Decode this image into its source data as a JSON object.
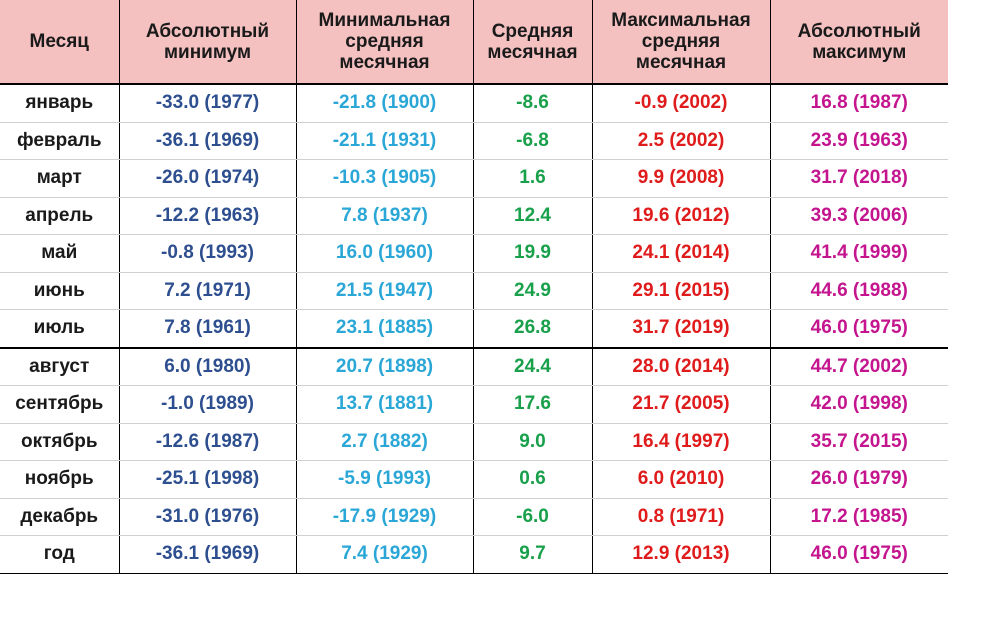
{
  "table": {
    "headers": [
      "Месяц",
      "Абсолютный минимум",
      "Минимальная средняя месячная",
      "Средняя месячная",
      "Максимальная средняя месячная",
      "Абсолютный максимум"
    ],
    "rows": [
      {
        "month": "январь",
        "abs_min": "-33.0 (1977)",
        "mean_min": "-21.8 (1900)",
        "mean": "-8.6",
        "mean_max": "-0.9 (2002)",
        "abs_max": "16.8 (1987)"
      },
      {
        "month": "февраль",
        "abs_min": "-36.1 (1969)",
        "mean_min": "-21.1 (1931)",
        "mean": "-6.8",
        "mean_max": "2.5 (2002)",
        "abs_max": "23.9 (1963)"
      },
      {
        "month": "март",
        "abs_min": "-26.0 (1974)",
        "mean_min": "-10.3 (1905)",
        "mean": "1.6",
        "mean_max": "9.9 (2008)",
        "abs_max": "31.7 (2018)"
      },
      {
        "month": "апрель",
        "abs_min": "-12.2 (1963)",
        "mean_min": "7.8 (1937)",
        "mean": "12.4",
        "mean_max": "19.6 (2012)",
        "abs_max": "39.3 (2006)"
      },
      {
        "month": "май",
        "abs_min": "-0.8 (1993)",
        "mean_min": "16.0 (1960)",
        "mean": "19.9",
        "mean_max": "24.1 (2014)",
        "abs_max": "41.4 (1999)"
      },
      {
        "month": "июнь",
        "abs_min": "7.2 (1971)",
        "mean_min": "21.5 (1947)",
        "mean": "24.9",
        "mean_max": "29.1 (2015)",
        "abs_max": "44.6 (1988)"
      },
      {
        "month": "июль",
        "abs_min": "7.8 (1961)",
        "mean_min": "23.1 (1885)",
        "mean": "26.8",
        "mean_max": "31.7 (2019)",
        "abs_max": "46.0 (1975)"
      },
      {
        "month": "август",
        "abs_min": "6.0 (1980)",
        "mean_min": "20.7 (1898)",
        "mean": "24.4",
        "mean_max": "28.0 (2014)",
        "abs_max": "44.7 (2002)"
      },
      {
        "month": "сентябрь",
        "abs_min": "-1.0 (1989)",
        "mean_min": "13.7 (1881)",
        "mean": "17.6",
        "mean_max": "21.7 (2005)",
        "abs_max": "42.0 (1998)"
      },
      {
        "month": "октябрь",
        "abs_min": "-12.6 (1987)",
        "mean_min": "2.7 (1882)",
        "mean": "9.0",
        "mean_max": "16.4 (1997)",
        "abs_max": "35.7 (2015)"
      },
      {
        "month": "ноябрь",
        "abs_min": "-25.1 (1998)",
        "mean_min": "-5.9 (1993)",
        "mean": "0.6",
        "mean_max": "6.0 (2010)",
        "abs_max": "26.0 (1979)"
      },
      {
        "month": "декабрь",
        "abs_min": "-31.0 (1976)",
        "mean_min": "-17.9 (1929)",
        "mean": "-6.0",
        "mean_max": "0.8 (1971)",
        "abs_max": "17.2 (1985)"
      },
      {
        "month": "год",
        "abs_min": "-36.1 (1969)",
        "mean_min": "7.4 (1929)",
        "mean": "9.7",
        "mean_max": "12.9 (2013)",
        "abs_max": "46.0 (1975)"
      }
    ]
  },
  "colors": {
    "header_bg": "#f4c0c0",
    "abs_min": "#2e4f8f",
    "mean_min": "#2aa7d6",
    "mean": "#18a04a",
    "mean_max": "#e01b1b",
    "abs_max": "#c4158f"
  }
}
